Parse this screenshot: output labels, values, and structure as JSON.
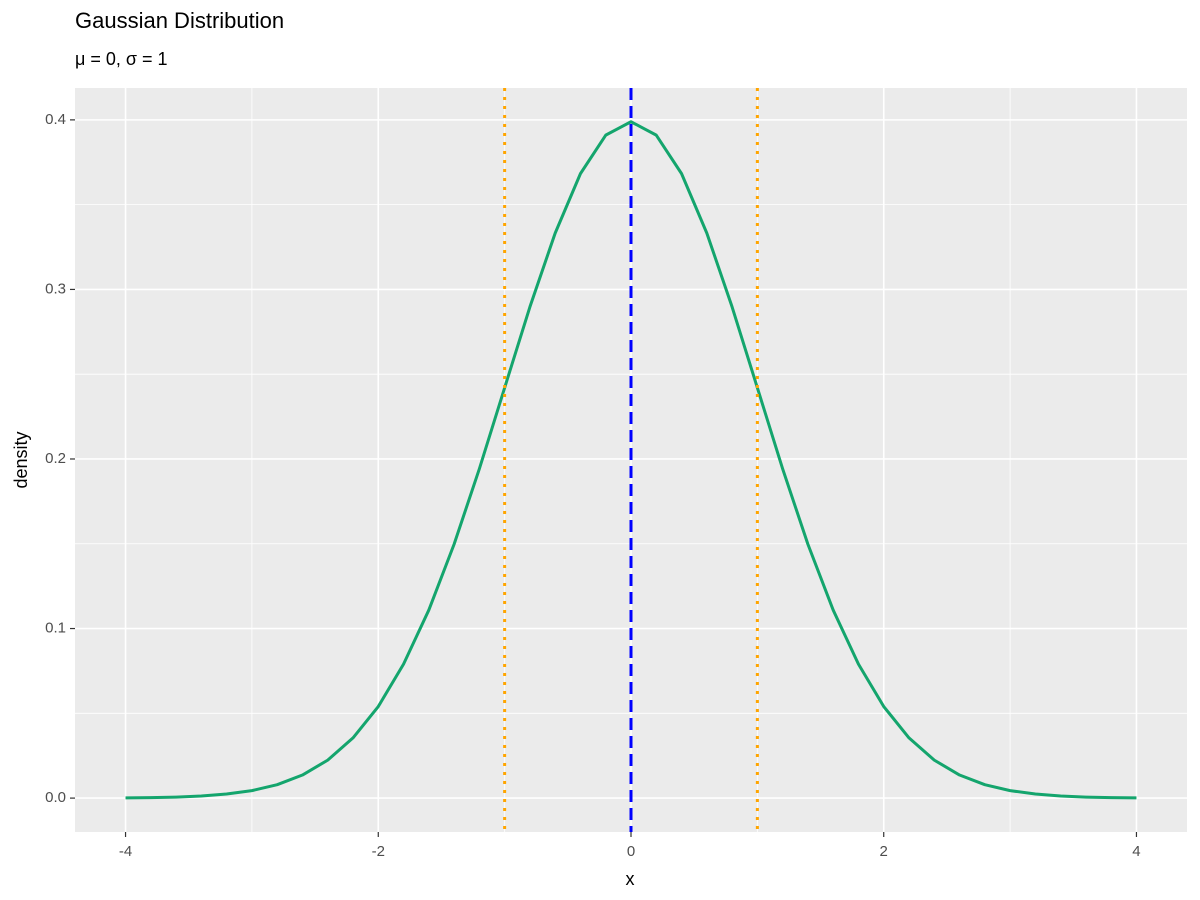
{
  "chart_data": {
    "type": "line",
    "title": "Gaussian Distribution",
    "subtitle": "μ = 0, σ = 1",
    "x_label": "x",
    "y_label": "density",
    "x": [
      -4.0,
      -3.8,
      -3.6,
      -3.4,
      -3.2,
      -3.0,
      -2.8,
      -2.6,
      -2.4,
      -2.2,
      -2.0,
      -1.8,
      -1.6,
      -1.4,
      -1.2,
      -1.0,
      -0.8,
      -0.6,
      -0.4,
      -0.2,
      0.0,
      0.2,
      0.4,
      0.6,
      0.8,
      1.0,
      1.2,
      1.4,
      1.6,
      1.8,
      2.0,
      2.2,
      2.4,
      2.6,
      2.8,
      3.0,
      3.2,
      3.4,
      3.6,
      3.8,
      4.0
    ],
    "series": [
      {
        "color": "#14a56d",
        "values": [
          0.0001,
          0.0003,
          0.0006,
          0.0012,
          0.0024,
          0.0044,
          0.0079,
          0.0136,
          0.0224,
          0.0355,
          0.054,
          0.079,
          0.1109,
          0.1497,
          0.1942,
          0.242,
          0.2897,
          0.3332,
          0.3683,
          0.391,
          0.3989,
          0.391,
          0.3683,
          0.3332,
          0.2897,
          0.242,
          0.1942,
          0.1497,
          0.1109,
          0.079,
          0.054,
          0.0355,
          0.0224,
          0.0136,
          0.0079,
          0.0044,
          0.0024,
          0.0012,
          0.0006,
          0.0003,
          0.0001
        ]
      }
    ],
    "reference_lines": [
      {
        "value": 0,
        "color": "#0000ff",
        "style": "dashed"
      },
      {
        "value": -1,
        "color": "#ffa500",
        "style": "dotted"
      },
      {
        "value": 1,
        "color": "#ffa500",
        "style": "dotted"
      }
    ],
    "xlim": [
      -4.4,
      4.4
    ],
    "ylim": [
      -0.02,
      0.4188
    ],
    "xticks": [
      -4,
      -2,
      0,
      2,
      4
    ],
    "yticks": [
      {
        "value": 0,
        "label": "0.0"
      },
      0.1,
      0.2,
      0.3,
      0.4
    ],
    "xminor": [
      -3,
      -1,
      1,
      3
    ],
    "yminor": [
      0.05,
      0.15,
      0.25,
      0.35
    ],
    "grid": true
  }
}
